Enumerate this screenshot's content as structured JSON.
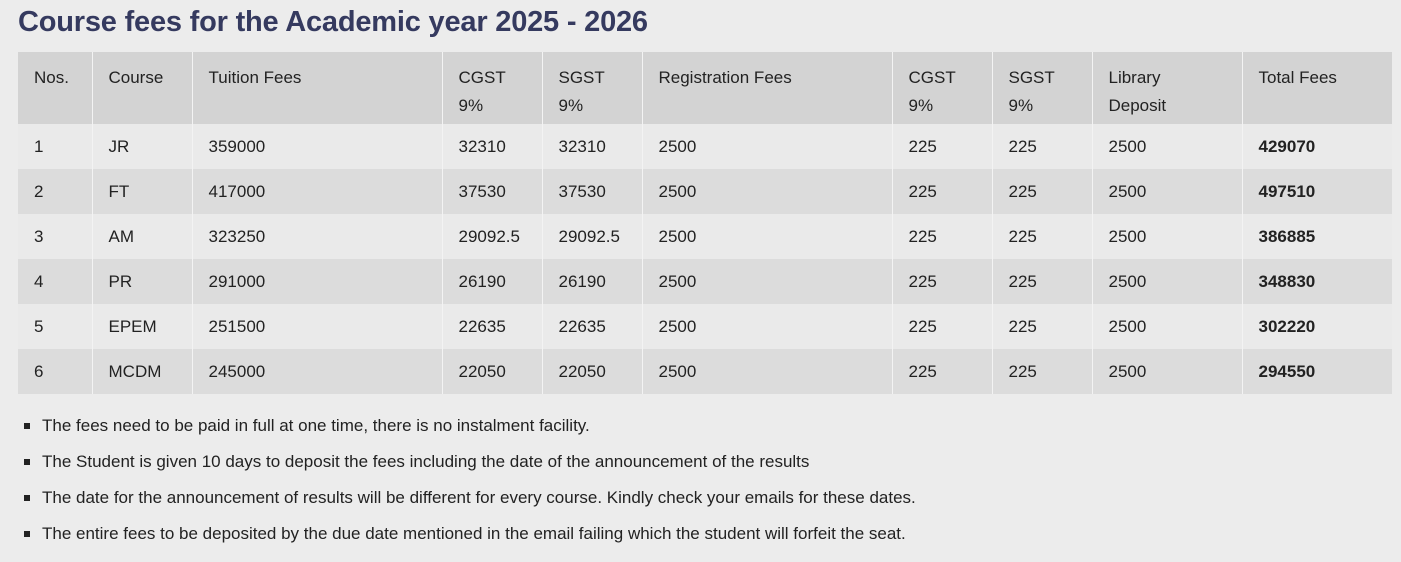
{
  "page": {
    "title": "Course fees for the Academic year 2025 - 2026"
  },
  "table": {
    "headers": [
      [
        "Nos."
      ],
      [
        "Course"
      ],
      [
        "Tuition Fees"
      ],
      [
        "CGST",
        "9%"
      ],
      [
        "SGST",
        "9%"
      ],
      [
        "Registration Fees"
      ],
      [
        "CGST",
        "9%"
      ],
      [
        "SGST",
        "9%"
      ],
      [
        "Library",
        "Deposit"
      ],
      [
        "Total Fees"
      ]
    ],
    "rows": [
      [
        "1",
        "JR",
        "359000",
        "32310",
        "32310",
        "2500",
        "225",
        "225",
        "2500",
        "429070"
      ],
      [
        "2",
        "FT",
        "417000",
        "37530",
        "37530",
        "2500",
        "225",
        "225",
        "2500",
        "497510"
      ],
      [
        "3",
        "AM",
        "323250",
        "29092.5",
        "29092.5",
        "2500",
        "225",
        "225",
        "2500",
        "386885"
      ],
      [
        "4",
        "PR",
        "291000",
        "26190",
        "26190",
        "2500",
        "225",
        "225",
        "2500",
        "348830"
      ],
      [
        "5",
        "EPEM",
        "251500",
        "22635",
        "22635",
        "2500",
        "225",
        "225",
        "2500",
        "302220"
      ],
      [
        "6",
        "MCDM",
        "245000",
        "22050",
        "22050",
        "2500",
        "225",
        "225",
        "2500",
        "294550"
      ]
    ]
  },
  "notes": [
    "The fees need to be paid in full at one time, there is no instalment facility.",
    "The Student is given 10 days to deposit the fees including the date of the announcement of the results",
    "The date for the announcement of results will be different for every course. Kindly check your emails for these dates.",
    "The entire fees to be deposited by the due date mentioned in the email failing which the student will forfeit the seat."
  ]
}
